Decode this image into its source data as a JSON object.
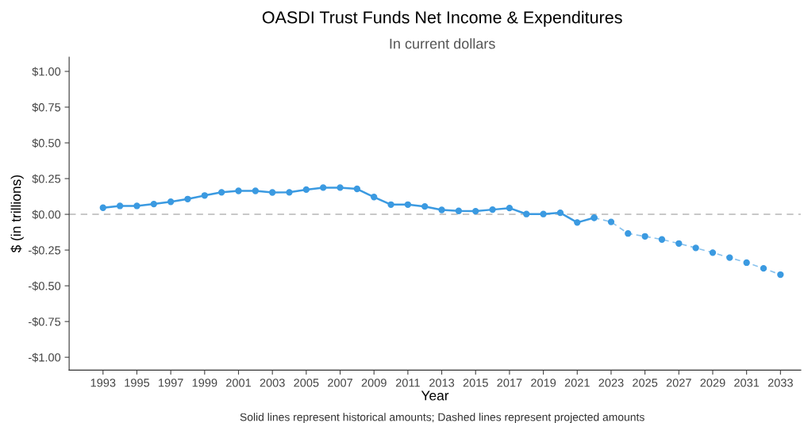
{
  "chart_data": {
    "type": "line",
    "title": "OASDI Trust Funds Net Income & Expenditures",
    "subtitle": "In current dollars",
    "xlabel": "Year",
    "ylabel": "$ (in trillions)",
    "annotations": [
      "Solid lines represent historical amounts; Dashed lines represent projected amounts"
    ],
    "marker": "circle",
    "grid": false,
    "series": [
      {
        "color": "#3b9ae1",
        "line_style": "solid",
        "x": [
          1993,
          1994,
          1995,
          1996,
          1997,
          1998,
          1999,
          2000,
          2001,
          2002,
          2003,
          2004,
          2005,
          2006,
          2007,
          2008,
          2009,
          2010,
          2011,
          2012,
          2013,
          2014,
          2015,
          2016,
          2017,
          2018,
          2019,
          2020,
          2021,
          2022
        ],
        "values": [
          0.046,
          0.059,
          0.059,
          0.072,
          0.088,
          0.107,
          0.132,
          0.154,
          0.164,
          0.164,
          0.153,
          0.154,
          0.173,
          0.187,
          0.187,
          0.178,
          0.121,
          0.068,
          0.068,
          0.055,
          0.031,
          0.024,
          0.022,
          0.033,
          0.044,
          0.002,
          0.002,
          0.011,
          -0.057,
          -0.024
        ]
      },
      {
        "color": "#3b9ae1",
        "line_style": "dashed",
        "x": [
          2022,
          2023,
          2024,
          2025,
          2026,
          2027,
          2028,
          2029,
          2030,
          2031,
          2032,
          2033
        ],
        "values": [
          -0.024,
          -0.053,
          -0.134,
          -0.154,
          -0.176,
          -0.204,
          -0.235,
          -0.268,
          -0.303,
          -0.338,
          -0.378,
          -0.422
        ]
      }
    ],
    "ref_lines": [
      {
        "axis": "y",
        "value": 0,
        "color": "#c8c8c8",
        "line_style": "dashed"
      }
    ],
    "xlim": [
      1991.0,
      2034.2
    ],
    "ylim": [
      -1.09,
      1.1
    ],
    "xticks": [
      1993,
      1995,
      1997,
      1999,
      2001,
      2003,
      2005,
      2007,
      2009,
      2011,
      2013,
      2015,
      2017,
      2019,
      2021,
      2023,
      2025,
      2027,
      2029,
      2031,
      2033
    ],
    "yticks": [
      {
        "value": -1,
        "label": "-$1.00"
      },
      {
        "value": -0.75,
        "label": "-$0.75"
      },
      {
        "value": -0.5,
        "label": "-$0.50"
      },
      {
        "value": -0.25,
        "label": "-$0.25"
      },
      {
        "value": 0,
        "label": "$0.00"
      },
      {
        "value": 0.25,
        "label": "$0.25"
      },
      {
        "value": 0.5,
        "label": "$0.50"
      },
      {
        "value": 0.75,
        "label": "$0.75"
      },
      {
        "value": 1,
        "label": "$1.00"
      }
    ]
  }
}
